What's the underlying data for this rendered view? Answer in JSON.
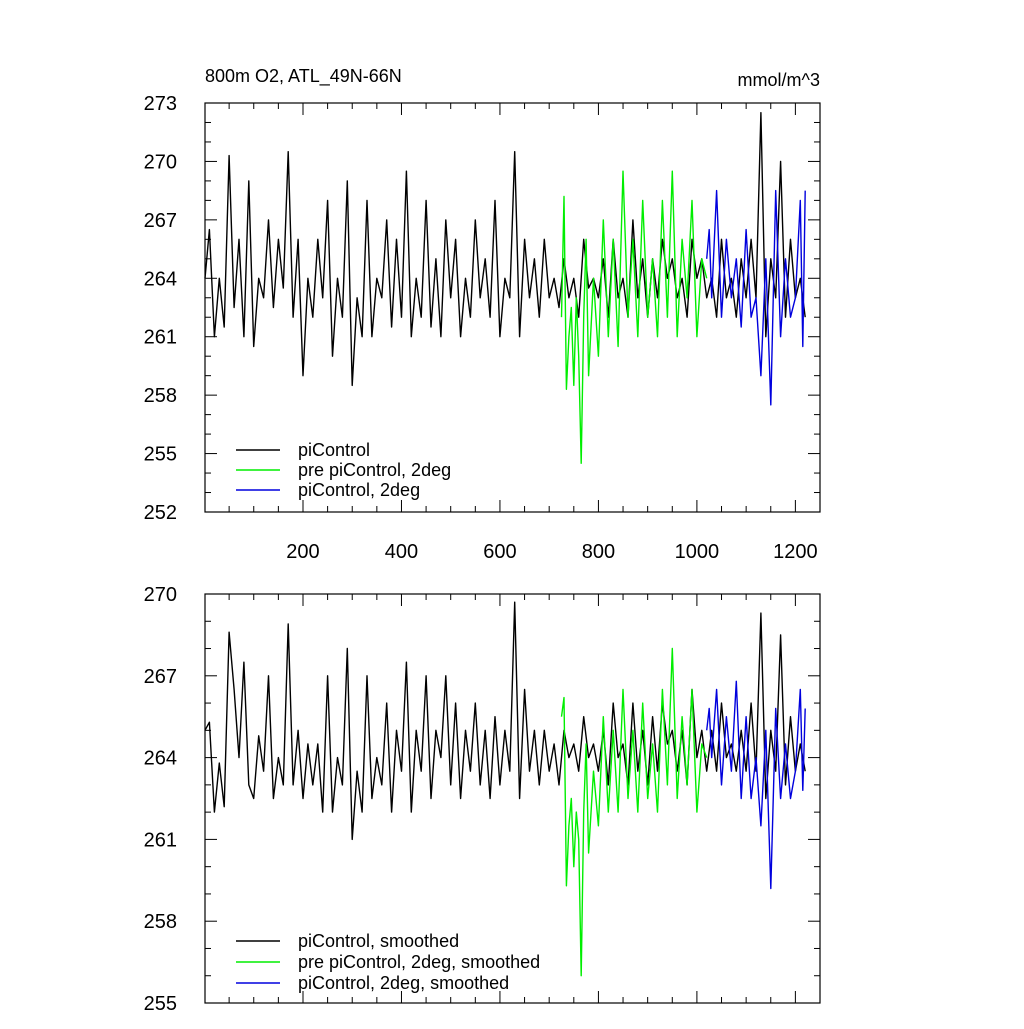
{
  "chart_data": [
    {
      "type": "line",
      "title": "800m O2, ATL_49N-66N",
      "units": "mmol/m^3",
      "xlim": [
        1,
        1250
      ],
      "ylim": [
        252,
        273
      ],
      "y_ticks": [
        252,
        255,
        258,
        261,
        264,
        267,
        270,
        273
      ],
      "x_ticks": [
        200,
        400,
        600,
        800,
        1000,
        1200
      ],
      "legend_position": "bottom-left",
      "series": [
        {
          "name": "piControl",
          "color": "#000000",
          "x": [
            1,
            10,
            20,
            30,
            40,
            50,
            60,
            70,
            80,
            90,
            100,
            110,
            120,
            130,
            140,
            150,
            160,
            170,
            180,
            190,
            200,
            210,
            220,
            230,
            240,
            250,
            260,
            270,
            280,
            290,
            300,
            310,
            320,
            330,
            340,
            350,
            360,
            370,
            380,
            390,
            400,
            410,
            420,
            430,
            440,
            450,
            460,
            470,
            480,
            490,
            500,
            510,
            520,
            530,
            540,
            550,
            560,
            570,
            580,
            590,
            600,
            610,
            620,
            630,
            640,
            650,
            660,
            670,
            680,
            690,
            700,
            710,
            720,
            730,
            740,
            750,
            760,
            770,
            780,
            790,
            800,
            810,
            820,
            830,
            840,
            850,
            860,
            870,
            880,
            890,
            900,
            910,
            920,
            930,
            940,
            950,
            960,
            970,
            980,
            990,
            1000,
            1010,
            1020,
            1030,
            1040,
            1050,
            1060,
            1070,
            1080,
            1090,
            1100,
            1110,
            1120,
            1130,
            1140,
            1150,
            1160,
            1170,
            1180,
            1190,
            1200,
            1210,
            1220
          ],
          "values": [
            264,
            266.5,
            261,
            264,
            261.5,
            270.3,
            262.5,
            266,
            261,
            269,
            260.5,
            264,
            263,
            267,
            262.5,
            266,
            263.5,
            270.5,
            262,
            266,
            259,
            264,
            262,
            266,
            263,
            268,
            260,
            264,
            262,
            269,
            258.5,
            263,
            261,
            268,
            261,
            264,
            263,
            267,
            261.5,
            266,
            262,
            269.5,
            261,
            264,
            262,
            268,
            261.5,
            265,
            261,
            267,
            263,
            266,
            261,
            264,
            262,
            267,
            263,
            265,
            262,
            268,
            261,
            264,
            263,
            270.5,
            261,
            266,
            263,
            265,
            262,
            266,
            263,
            264,
            262.5,
            265,
            263,
            264,
            262,
            266,
            263.5,
            264,
            263,
            265,
            262,
            266,
            263,
            264,
            262,
            267,
            263,
            265,
            262,
            265,
            263,
            266,
            264,
            265,
            263,
            264,
            262,
            266,
            264,
            265,
            263,
            264,
            262,
            266,
            263,
            264,
            262,
            265,
            263,
            266,
            263,
            272.5,
            261,
            265,
            263,
            270,
            262,
            266,
            263,
            264,
            262
          ]
        },
        {
          "name": "pre piControl, 2deg",
          "color": "#00ee00",
          "x": [
            725,
            730,
            735,
            740,
            745,
            750,
            755,
            760,
            765,
            770,
            775,
            780,
            790,
            800,
            810,
            820,
            830,
            840,
            850,
            860,
            870,
            880,
            890,
            900,
            910,
            920,
            930,
            940,
            950,
            960,
            970,
            980,
            990,
            1000,
            1010,
            1020
          ],
          "values": [
            262,
            268.2,
            258.3,
            261,
            262.5,
            258.5,
            263,
            260,
            254.5,
            262,
            266,
            259,
            264,
            260,
            267,
            261,
            266,
            260.5,
            269.5,
            262,
            266,
            261,
            268,
            262,
            265,
            261,
            268,
            262,
            269.5,
            261,
            266,
            263,
            268,
            261,
            265,
            264
          ]
        },
        {
          "name": "piControl, 2deg",
          "color": "#0000dd",
          "x": [
            1020,
            1025,
            1030,
            1040,
            1050,
            1060,
            1070,
            1080,
            1090,
            1100,
            1110,
            1120,
            1130,
            1140,
            1150,
            1160,
            1170,
            1180,
            1190,
            1200,
            1210,
            1215,
            1220
          ],
          "values": [
            265,
            266.5,
            263,
            268.5,
            262,
            266,
            263,
            265,
            261.5,
            266.5,
            262,
            263,
            259,
            265,
            257.5,
            268.5,
            261,
            265,
            262,
            263,
            268,
            260.5,
            268.5
          ]
        }
      ]
    },
    {
      "type": "line",
      "title": "",
      "xlim": [
        1,
        1250
      ],
      "ylim": [
        255,
        270
      ],
      "y_ticks": [
        255,
        258,
        261,
        264,
        267,
        270
      ],
      "legend_position": "bottom-left",
      "series": [
        {
          "name": "piControl, smoothed",
          "color": "#000000",
          "x": [
            1,
            10,
            20,
            30,
            40,
            50,
            60,
            70,
            80,
            90,
            100,
            110,
            120,
            130,
            140,
            150,
            160,
            170,
            180,
            190,
            200,
            210,
            220,
            230,
            240,
            250,
            260,
            270,
            280,
            290,
            300,
            310,
            320,
            330,
            340,
            350,
            360,
            370,
            380,
            390,
            400,
            410,
            420,
            430,
            440,
            450,
            460,
            470,
            480,
            490,
            500,
            510,
            520,
            530,
            540,
            550,
            560,
            570,
            580,
            590,
            600,
            610,
            620,
            630,
            640,
            650,
            660,
            670,
            680,
            690,
            700,
            710,
            720,
            730,
            740,
            750,
            760,
            770,
            780,
            790,
            800,
            810,
            820,
            830,
            840,
            850,
            860,
            870,
            880,
            890,
            900,
            910,
            920,
            930,
            940,
            950,
            960,
            970,
            980,
            990,
            1000,
            1010,
            1020,
            1030,
            1040,
            1050,
            1060,
            1070,
            1080,
            1090,
            1100,
            1110,
            1120,
            1130,
            1140,
            1150,
            1160,
            1170,
            1180,
            1190,
            1200,
            1210,
            1220
          ],
          "values": [
            265,
            265.3,
            262,
            263.8,
            262.2,
            268.6,
            266.5,
            264,
            267.5,
            263,
            262.5,
            264.8,
            263.5,
            267,
            262.5,
            264,
            263,
            268.9,
            263,
            265,
            262.5,
            264.5,
            263,
            264.5,
            262,
            267,
            262,
            264,
            263,
            268,
            261,
            263.5,
            262,
            267,
            262.5,
            264,
            263,
            266,
            262,
            265,
            263.5,
            267.5,
            262,
            265,
            263.5,
            267,
            262.5,
            265,
            264,
            267,
            263,
            266,
            262.5,
            265,
            263.5,
            266,
            263,
            265,
            262.5,
            265.5,
            263,
            265,
            263.5,
            269.7,
            262.5,
            266.5,
            263.5,
            265,
            263,
            265,
            263.5,
            264.5,
            263,
            265,
            264,
            264.5,
            263.5,
            265.5,
            264,
            264.5,
            263.5,
            265,
            263,
            266,
            264,
            264.5,
            263,
            266,
            263.5,
            265,
            263,
            265.5,
            263.5,
            266,
            264.5,
            265,
            263.5,
            265,
            263,
            266.5,
            264,
            265,
            263.5,
            265,
            263.5,
            266,
            264,
            264.5,
            263.5,
            265,
            263.5,
            266,
            263.5,
            269.3,
            262.5,
            265,
            263.5,
            268.5,
            263,
            265.5,
            263.5,
            264.5,
            263.5
          ]
        },
        {
          "name": "pre piControl, 2deg, smoothed",
          "color": "#00ee00",
          "x": [
            725,
            730,
            735,
            740,
            745,
            750,
            755,
            760,
            765,
            770,
            775,
            780,
            790,
            800,
            810,
            820,
            830,
            840,
            850,
            860,
            870,
            880,
            890,
            900,
            910,
            920,
            930,
            940,
            950,
            960,
            970,
            980,
            990,
            1000,
            1010,
            1020
          ],
          "values": [
            265.5,
            266.2,
            259.3,
            261.5,
            262.5,
            260,
            262,
            261,
            256,
            262,
            264.5,
            260.5,
            263.5,
            261.5,
            265.5,
            262,
            265,
            262,
            266.5,
            262.5,
            265,
            262,
            266,
            262.5,
            264.5,
            262,
            266.5,
            263,
            268,
            262.5,
            265.5,
            263,
            266.5,
            262,
            264.5,
            264
          ]
        },
        {
          "name": "piControl, 2deg, smoothed",
          "color": "#0000dd",
          "x": [
            1020,
            1025,
            1030,
            1040,
            1050,
            1060,
            1070,
            1080,
            1090,
            1100,
            1110,
            1120,
            1130,
            1140,
            1150,
            1160,
            1170,
            1180,
            1190,
            1200,
            1210,
            1215,
            1220
          ],
          "values": [
            265,
            265.8,
            264,
            266.5,
            263,
            265.5,
            263.5,
            266.8,
            262.5,
            265.5,
            262.5,
            264,
            261.5,
            265,
            259.2,
            265.8,
            262.5,
            264.5,
            262.5,
            263.5,
            266.5,
            262.8,
            265.8
          ]
        }
      ]
    }
  ]
}
